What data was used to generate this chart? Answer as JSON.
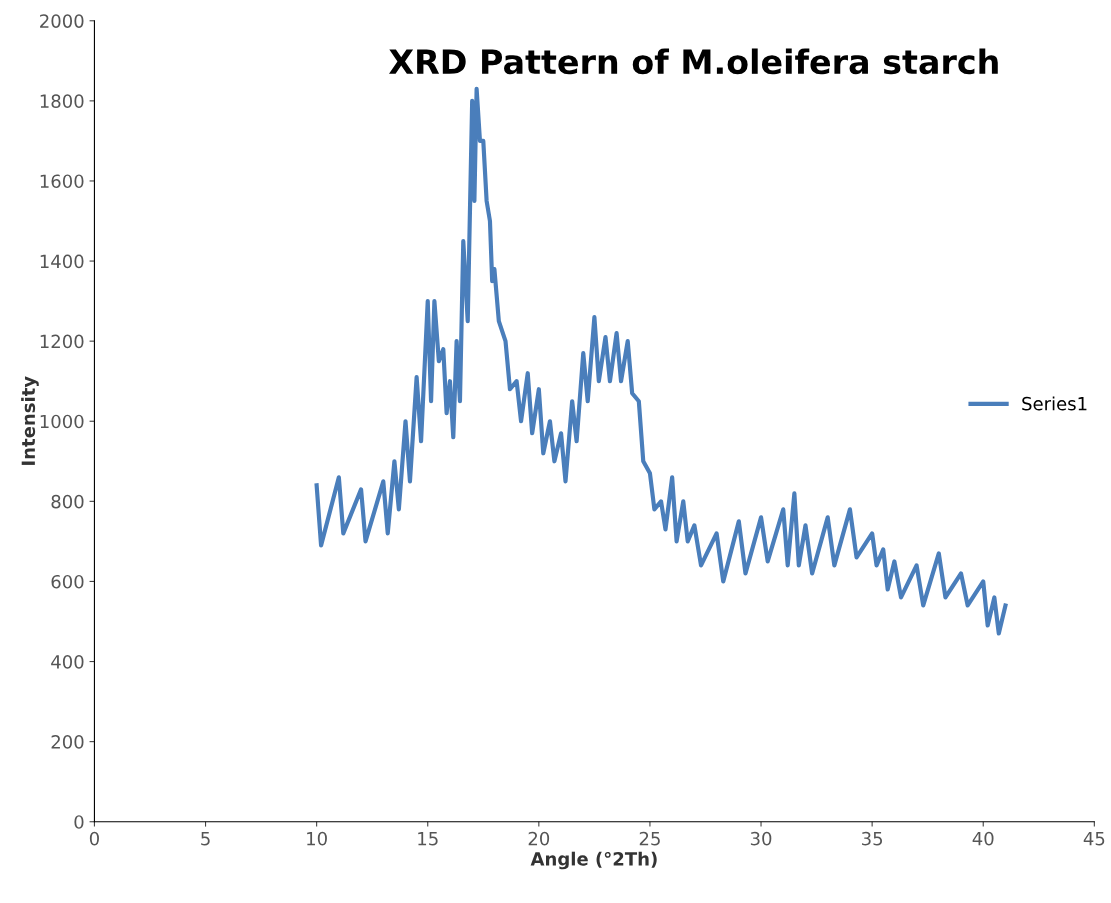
{
  "chart_data": {
    "type": "line",
    "title": "XRD Pattern of M.oleifera starch",
    "xlabel": "Angle (°2Th)",
    "ylabel": "Intensity",
    "x": [
      10,
      10.2,
      11,
      11.2,
      12,
      12.2,
      13,
      13.2,
      13.5,
      13.7,
      14,
      14.2,
      14.5,
      14.7,
      15,
      15.15,
      15.3,
      15.5,
      15.7,
      15.85,
      16,
      16.15,
      16.3,
      16.45,
      16.6,
      16.8,
      17,
      17.1,
      17.2,
      17.35,
      17.5,
      17.65,
      17.8,
      17.9,
      18,
      18.2,
      18.5,
      18.7,
      19,
      19.2,
      19.5,
      19.7,
      20,
      20.2,
      20.5,
      20.7,
      21,
      21.2,
      21.5,
      21.7,
      22,
      22.2,
      22.5,
      22.7,
      23,
      23.2,
      23.5,
      23.7,
      24,
      24.2,
      24.5,
      24.7,
      25,
      25.2,
      25.5,
      25.7,
      26,
      26.2,
      26.5,
      26.7,
      27,
      27.3,
      28,
      28.3,
      29,
      29.3,
      30,
      30.3,
      31,
      31.2,
      31.5,
      31.7,
      32,
      32.3,
      33,
      33.3,
      34,
      34.3,
      35,
      35.2,
      35.5,
      35.7,
      36,
      36.3,
      37,
      37.3,
      38,
      38.3,
      39,
      39.3,
      40,
      40.2,
      40.5,
      40.7,
      41
    ],
    "series": [
      {
        "name": "Series1",
        "color": "#4a7ebb",
        "values": [
          840,
          690,
          860,
          720,
          830,
          700,
          850,
          720,
          900,
          780,
          1000,
          850,
          1110,
          950,
          1300,
          1050,
          1300,
          1150,
          1180,
          1020,
          1100,
          960,
          1200,
          1050,
          1450,
          1250,
          1800,
          1550,
          1830,
          1700,
          1700,
          1550,
          1500,
          1350,
          1380,
          1250,
          1200,
          1080,
          1100,
          1000,
          1120,
          970,
          1080,
          920,
          1000,
          900,
          970,
          850,
          1050,
          950,
          1170,
          1050,
          1260,
          1100,
          1210,
          1100,
          1220,
          1100,
          1200,
          1070,
          1050,
          900,
          870,
          780,
          800,
          730,
          860,
          700,
          800,
          700,
          740,
          640,
          720,
          600,
          750,
          620,
          760,
          650,
          780,
          640,
          820,
          640,
          740,
          620,
          760,
          640,
          780,
          660,
          720,
          640,
          680,
          580,
          650,
          560,
          640,
          540,
          670,
          560,
          620,
          540,
          600,
          490,
          560,
          470,
          540
        ]
      }
    ],
    "xlim": [
      0,
      45
    ],
    "ylim": [
      0,
      2000
    ],
    "xticks": [
      0,
      5,
      10,
      15,
      20,
      25,
      30,
      35,
      40,
      45
    ],
    "yticks": [
      0,
      200,
      400,
      600,
      800,
      1000,
      1200,
      1400,
      1600,
      1800,
      2000
    ],
    "legend": "right",
    "grid": false,
    "marker": "none",
    "line_style": "solid"
  }
}
